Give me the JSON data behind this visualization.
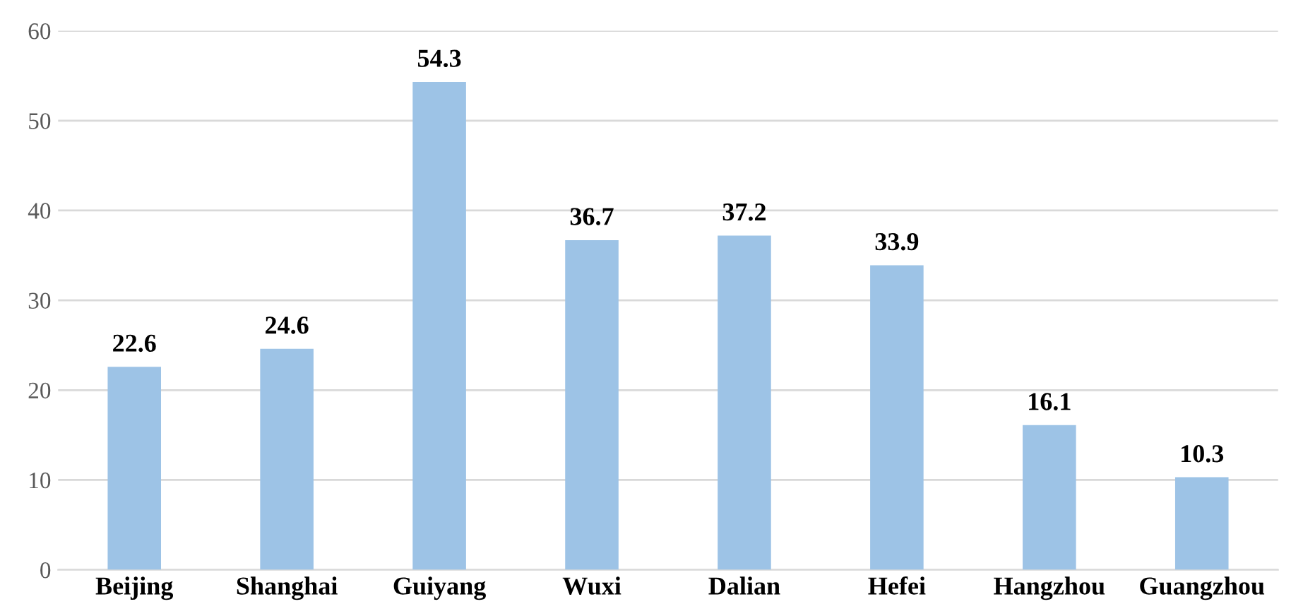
{
  "chart_data": {
    "type": "bar",
    "categories": [
      "Beijing",
      "Shanghai",
      "Guiyang",
      "Wuxi",
      "Dalian",
      "Hefei",
      "Hangzhou",
      "Guangzhou"
    ],
    "values": [
      22.6,
      24.6,
      54.3,
      36.7,
      37.2,
      33.9,
      16.1,
      10.3
    ],
    "color": "#9dc3e6",
    "ylim": [
      0,
      60
    ],
    "yticks": [
      0,
      10,
      20,
      30,
      40,
      50,
      60
    ],
    "grid": "y",
    "data_labels": true
  }
}
